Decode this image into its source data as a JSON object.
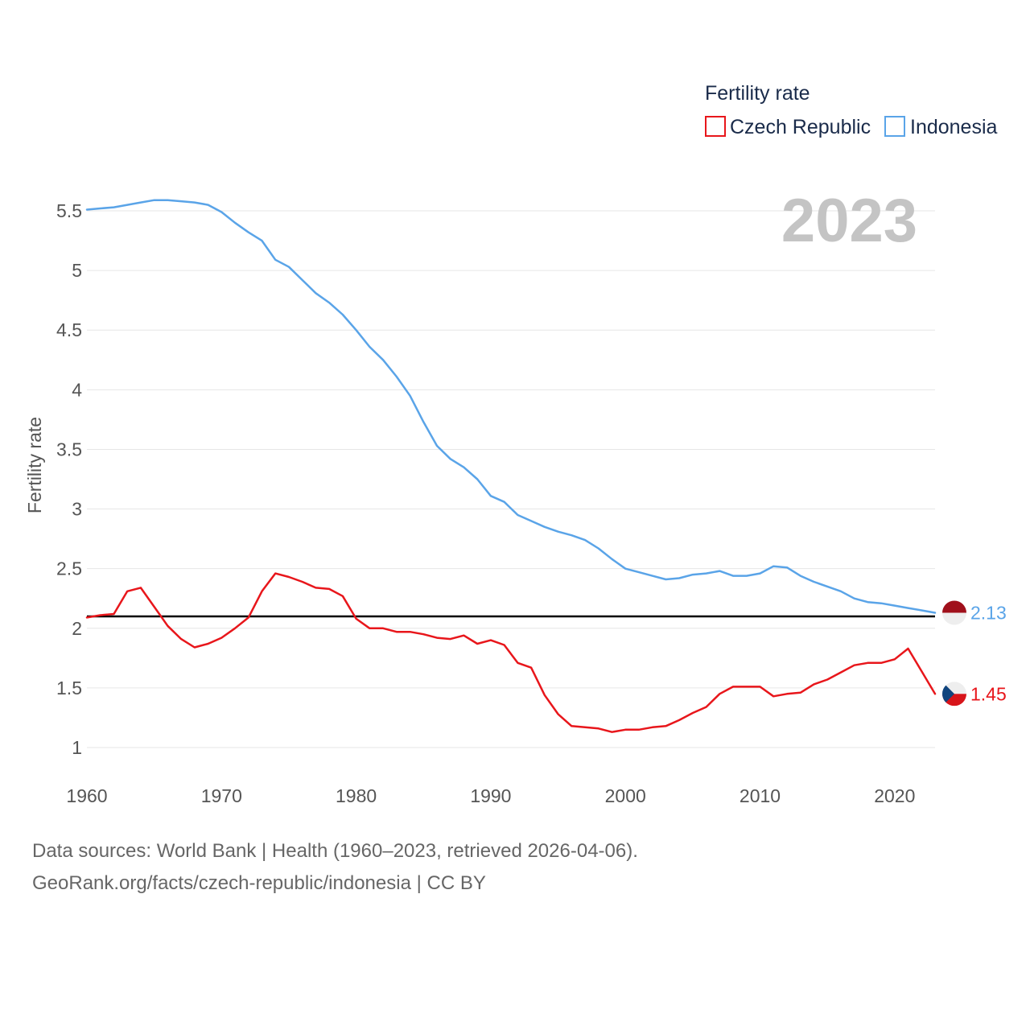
{
  "chart_data": {
    "type": "line",
    "legend_title": "Fertility rate",
    "ylabel": "Fertility rate",
    "year_label": "2023",
    "ylim": [
      0.8,
      5.75
    ],
    "xlim": [
      1960,
      2023
    ],
    "y_ticks": [
      1,
      1.5,
      2,
      2.5,
      3,
      3.5,
      4,
      4.5,
      5,
      5.5
    ],
    "y_tick_labels": [
      "1",
      "1.5",
      "2",
      "2.5",
      "3",
      "3.5",
      "4",
      "4.5",
      "5",
      "5.5"
    ],
    "x_ticks": [
      1960,
      1970,
      1980,
      1990,
      2000,
      2010,
      2020
    ],
    "x_tick_labels": [
      "1960",
      "1970",
      "1980",
      "1990",
      "2000",
      "2010",
      "2020"
    ],
    "reference_line": {
      "value": 2.1,
      "color": "#000000"
    },
    "x": [
      1960,
      1961,
      1962,
      1963,
      1964,
      1965,
      1966,
      1967,
      1968,
      1969,
      1970,
      1971,
      1972,
      1973,
      1974,
      1975,
      1976,
      1977,
      1978,
      1979,
      1980,
      1981,
      1982,
      1983,
      1984,
      1985,
      1986,
      1987,
      1988,
      1989,
      1990,
      1991,
      1992,
      1993,
      1994,
      1995,
      1996,
      1997,
      1998,
      1999,
      2000,
      2001,
      2002,
      2003,
      2004,
      2005,
      2006,
      2007,
      2008,
      2009,
      2010,
      2011,
      2012,
      2013,
      2014,
      2015,
      2016,
      2017,
      2018,
      2019,
      2020,
      2021,
      2022,
      2023
    ],
    "series": [
      {
        "name": "Czech Republic",
        "color": "#e8161b",
        "end_label": "1.45",
        "flag": "czech-flag",
        "values": [
          2.09,
          2.11,
          2.12,
          2.31,
          2.34,
          2.18,
          2.02,
          1.91,
          1.84,
          1.87,
          1.92,
          2.0,
          2.09,
          2.31,
          2.46,
          2.43,
          2.39,
          2.34,
          2.33,
          2.27,
          2.08,
          2.0,
          2.0,
          1.97,
          1.97,
          1.95,
          1.92,
          1.91,
          1.94,
          1.87,
          1.9,
          1.86,
          1.71,
          1.67,
          1.44,
          1.28,
          1.18,
          1.17,
          1.16,
          1.13,
          1.15,
          1.15,
          1.17,
          1.18,
          1.23,
          1.29,
          1.34,
          1.45,
          1.51,
          1.51,
          1.51,
          1.43,
          1.45,
          1.46,
          1.53,
          1.57,
          1.63,
          1.69,
          1.71,
          1.71,
          1.74,
          1.83,
          1.64,
          1.45
        ]
      },
      {
        "name": "Indonesia",
        "color": "#5aa4e8",
        "end_label": "2.13",
        "flag": "indonesia-flag",
        "values": [
          5.51,
          5.52,
          5.53,
          5.55,
          5.57,
          5.59,
          5.59,
          5.58,
          5.57,
          5.55,
          5.49,
          5.4,
          5.32,
          5.25,
          5.09,
          5.03,
          4.92,
          4.81,
          4.73,
          4.63,
          4.5,
          4.36,
          4.25,
          4.11,
          3.95,
          3.73,
          3.53,
          3.42,
          3.35,
          3.25,
          3.11,
          3.06,
          2.95,
          2.9,
          2.85,
          2.81,
          2.78,
          2.74,
          2.67,
          2.58,
          2.5,
          2.47,
          2.44,
          2.41,
          2.42,
          2.45,
          2.46,
          2.48,
          2.44,
          2.44,
          2.46,
          2.52,
          2.51,
          2.44,
          2.39,
          2.35,
          2.31,
          2.25,
          2.22,
          2.21,
          2.19,
          2.17,
          2.15,
          2.13
        ]
      }
    ]
  },
  "footer": {
    "line1": "Data sources: World Bank | Health (1960–2023, retrieved 2026-04-06).",
    "line2": "GeoRank.org/facts/czech-republic/indonesia | CC BY"
  }
}
